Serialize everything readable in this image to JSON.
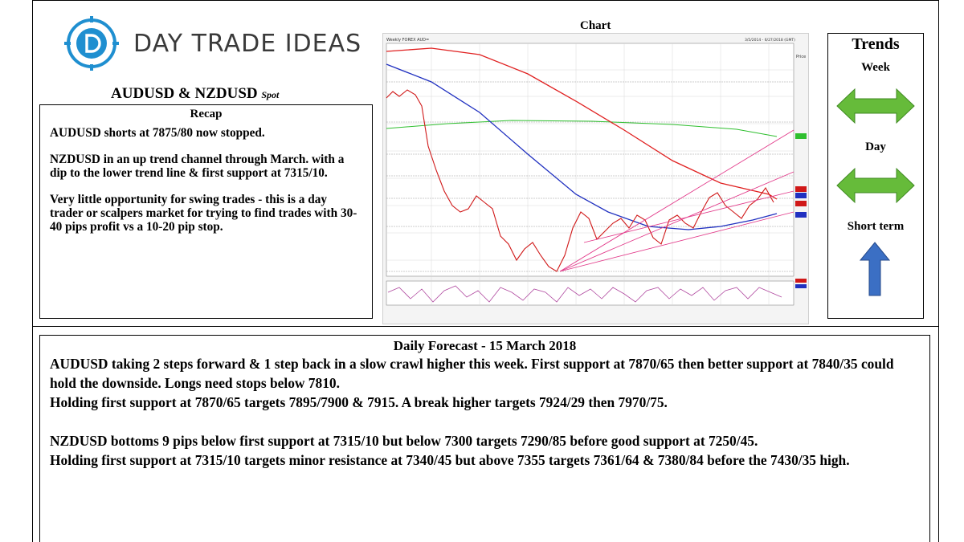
{
  "header": {
    "logo_text": "DAY TRADE IDEAS",
    "pair_title": "AUDUSD & NZDUSD",
    "pair_subtitle": "Spot"
  },
  "recap": {
    "heading": "Recap",
    "paragraphs": [
      "AUDUSD shorts at 7875/80 now stopped.",
      "NZDUSD in an up trend channel through March. with a dip to the lower trend line & first support at 7315/10.",
      "Very little opportunity for swing trades - this is a day trader or scalpers market for trying to find trades with 30-40 pips profit vs a 10-20 pip stop."
    ]
  },
  "chart": {
    "heading": "Chart",
    "inner_title": "Weekly FOREX AUD=",
    "inner_date": "3/5/2014 - 6/27/2018 (GMT)",
    "axis_label": "Price"
  },
  "trends": {
    "heading": "Trends",
    "items": [
      {
        "label": "Week",
        "direction": "sideways",
        "color": "#66bb3a"
      },
      {
        "label": "Day",
        "direction": "sideways",
        "color": "#66bb3a"
      },
      {
        "label": "Short term",
        "direction": "up",
        "color": "#3b6fc4"
      }
    ]
  },
  "forecast": {
    "heading": "Daily Forecast - 15 March 2018",
    "lines": [
      "AUDUSD taking 2 steps forward & 1 step back in a slow crawl higher this week. First support at 7870/65 then better support at 7840/35 could hold the downside. Longs need stops below 7810.",
      "Holding first support at 7870/65 targets 7895/7900 & 7915. A break higher targets 7924/29 then 7970/75.",
      "NZDUSD bottoms 9 pips below first support at 7315/10 but below 7300 targets 7290/85 before good support at 7250/45.",
      "Holding first support at 7315/10 targets minor resistance at 7340/45 but above 7355 targets 7361/64 & 7380/84 before the 7430/35 high."
    ]
  }
}
